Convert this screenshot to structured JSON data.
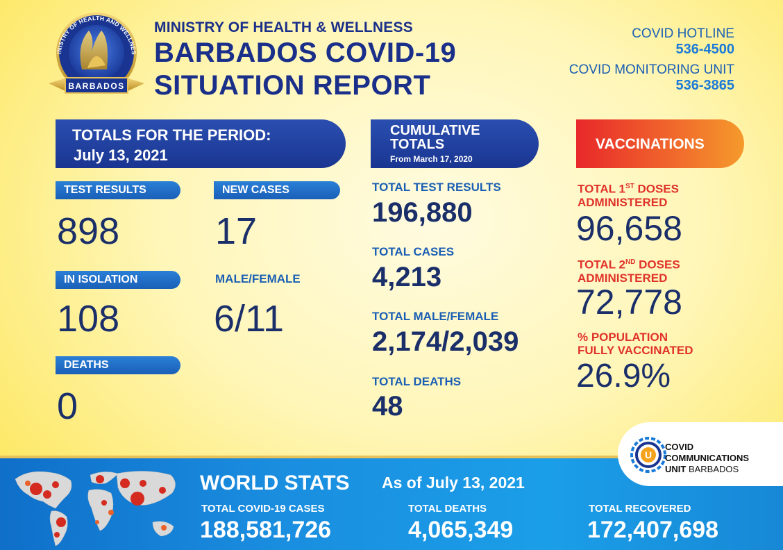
{
  "header": {
    "ministry": "MINISTRY OF HEALTH & WELLNESS",
    "title_line1": "BARBADOS COVID-19",
    "title_line2": "SITUATION REPORT",
    "seal_text_top": "MINISTRY OF HEALTH AND WELLNESS",
    "seal_text_bottom": "BARBADOS"
  },
  "hotline": {
    "covid_label": "COVID HOTLINE",
    "covid_number": "536-4500",
    "monitoring_label": "COVID MONITORING UNIT",
    "monitoring_number": "536-3865"
  },
  "period": {
    "title": "TOTALS FOR THE PERIOD:",
    "date": "July 13, 2021",
    "test_results_label": "TEST RESULTS",
    "test_results": "898",
    "new_cases_label": "NEW CASES",
    "new_cases": "17",
    "isolation_label": "IN ISOLATION",
    "isolation": "108",
    "male_female_label": "MALE/FEMALE",
    "male_female": "6/11",
    "deaths_label": "DEATHS",
    "deaths": "0"
  },
  "cumulative": {
    "title_line1": "CUMULATIVE",
    "title_line2": "TOTALS",
    "since": "From March 17, 2020",
    "test_results_label": "TOTAL TEST RESULTS",
    "test_results": "196,880",
    "cases_label": "TOTAL CASES",
    "cases": "4,213",
    "male_female_label": "TOTAL MALE/FEMALE",
    "male_female": "2,174/2,039",
    "deaths_label": "TOTAL DEATHS",
    "deaths": "48"
  },
  "vaccinations": {
    "title": "VACCINATIONS",
    "first_label_a": "TOTAL 1",
    "first_label_sup": "ST",
    "first_label_b": " DOSES",
    "first_label_c": "ADMINISTERED",
    "first_doses": "96,658",
    "second_label_a": "TOTAL 2",
    "second_label_sup": "ND",
    "second_label_b": " DOSES",
    "second_label_c": "ADMINISTERED",
    "second_doses": "72,778",
    "pct_label_a": "% POPULATION",
    "pct_label_b": "FULLY VACCINATED",
    "pct_fully": "26.9%"
  },
  "ccu_logo": {
    "line1": "COVID",
    "line2": "COMMUNICATIONS",
    "line3_bold": "UNIT",
    "line3_rest": " BARBADOS",
    "letter": "U"
  },
  "world": {
    "title": "WORLD STATS",
    "date": "As of July 13, 2021",
    "cases_label": "TOTAL COVID-19 CASES",
    "cases": "188,581,726",
    "deaths_label": "TOTAL DEATHS",
    "deaths": "4,065,349",
    "recovered_label": "TOTAL RECOVERED",
    "recovered": "172,407,698"
  },
  "colors": {
    "navy": "#1a2f8a",
    "blue": "#1a5fb4",
    "red": "#e0322a",
    "band": "#1a8ddf"
  }
}
